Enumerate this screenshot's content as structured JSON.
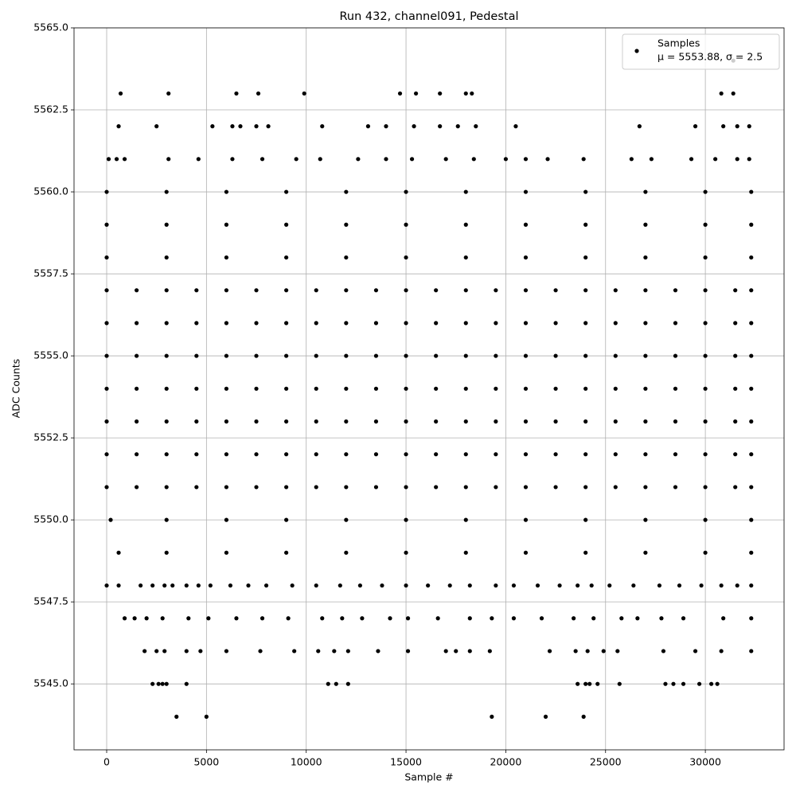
{
  "chart_data": {
    "type": "scatter",
    "title": "Run 432, channel091, Pedestal",
    "x_label": "Sample #",
    "y_label": "ADC Counts",
    "xlim": [
      -1636,
      33945
    ],
    "ylim": [
      5542.99,
      5565
    ],
    "xticks": [
      0,
      5000,
      10000,
      15000,
      20000,
      25000,
      30000
    ],
    "yticks": [
      {
        "value": 5545,
        "label": "5545.0"
      },
      {
        "value": 5547.5,
        "label": "5547.5"
      },
      {
        "value": 5550,
        "label": "5550.0"
      },
      {
        "value": 5552.5,
        "label": "5552.5"
      },
      {
        "value": 5555,
        "label": "5555.0"
      },
      {
        "value": 5557.5,
        "label": "5557.5"
      },
      {
        "value": 5560,
        "label": "5560.0"
      },
      {
        "value": 5562.5,
        "label": "5562.5"
      },
      {
        "value": 5565,
        "label": "5565.0"
      }
    ],
    "grid": true,
    "legend": "upper right",
    "annotation": "μ = 5553.88, σ = 2.5",
    "x": [
      31400,
      700,
      3100,
      6500,
      7600,
      9900,
      14700,
      15500,
      16700,
      18000,
      18300,
      30800,
      31400,
      600,
      2500,
      5300,
      6300,
      6700,
      7500,
      8100,
      10800,
      13100,
      14000,
      15400,
      16700,
      17600,
      18500,
      20500,
      26700,
      29500,
      30900,
      31600,
      32200,
      100,
      500,
      900,
      3100,
      4600,
      6300,
      7800,
      9500,
      10700,
      12600,
      14000,
      15300,
      17000,
      18400,
      20000,
      21000,
      22100,
      23900,
      26300,
      27300,
      29300,
      30500,
      31600,
      32200,
      0,
      3000,
      6000,
      9000,
      12000,
      15000,
      18000,
      21000,
      24000,
      27000,
      30000,
      32300,
      0,
      3000,
      6000,
      9000,
      12000,
      15000,
      18000,
      21000,
      24000,
      27000,
      30000,
      32300,
      0,
      3000,
      6000,
      9000,
      12000,
      15000,
      18000,
      21000,
      24000,
      27000,
      30000,
      32300,
      0,
      1500,
      3000,
      4500,
      6000,
      7500,
      9000,
      10500,
      12000,
      13500,
      15000,
      16500,
      18000,
      19500,
      21000,
      22500,
      24000,
      25500,
      27000,
      28500,
      30000,
      31500,
      32300,
      0,
      1500,
      3000,
      4500,
      6000,
      7500,
      9000,
      10500,
      12000,
      13500,
      15000,
      16500,
      18000,
      19500,
      21000,
      22500,
      24000,
      25500,
      27000,
      28500,
      30000,
      31500,
      32300,
      0,
      1500,
      3000,
      4500,
      6000,
      7500,
      9000,
      10500,
      12000,
      13500,
      15000,
      16500,
      18000,
      19500,
      21000,
      22500,
      24000,
      25500,
      27000,
      28500,
      30000,
      31500,
      32300,
      0,
      1500,
      3000,
      4500,
      6000,
      7500,
      9000,
      10500,
      12000,
      13500,
      15000,
      16500,
      18000,
      19500,
      21000,
      22500,
      24000,
      25500,
      27000,
      28500,
      30000,
      31500,
      32300,
      0,
      1500,
      3000,
      4500,
      6000,
      7500,
      9000,
      10500,
      12000,
      13500,
      15000,
      16500,
      18000,
      19500,
      21000,
      22500,
      24000,
      25500,
      27000,
      28500,
      30000,
      31500,
      32300,
      0,
      1500,
      3000,
      4500,
      6000,
      7500,
      9000,
      10500,
      12000,
      13500,
      15000,
      16500,
      18000,
      19500,
      21000,
      22500,
      24000,
      25500,
      27000,
      28500,
      30000,
      31500,
      32300,
      0,
      1500,
      3000,
      4500,
      6000,
      7500,
      9000,
      10500,
      12000,
      13500,
      15000,
      16500,
      18000,
      19500,
      21000,
      22500,
      24000,
      25500,
      27000,
      28500,
      30000,
      31500,
      32300,
      200,
      3000,
      6000,
      9000,
      12000,
      15000,
      18000,
      21000,
      24000,
      27000,
      30000,
      32300,
      600,
      3000,
      6000,
      9000,
      12000,
      15000,
      18000,
      21000,
      24000,
      27000,
      30000,
      32300,
      0,
      600,
      1700,
      2300,
      2900,
      3300,
      4000,
      4600,
      5200,
      6200,
      7100,
      8000,
      9300,
      10500,
      11700,
      12700,
      13800,
      15000,
      16100,
      17200,
      18200,
      19500,
      20400,
      21600,
      22700,
      23600,
      24300,
      25200,
      26400,
      27700,
      28700,
      29800,
      30800,
      31600,
      32300,
      900,
      1400,
      2000,
      2800,
      4100,
      5100,
      6500,
      7800,
      9100,
      10800,
      11800,
      12800,
      14200,
      15100,
      16600,
      18200,
      19300,
      20400,
      21800,
      23400,
      24400,
      25800,
      26600,
      27800,
      28900,
      30900,
      32300,
      1900,
      2500,
      2900,
      4000,
      4700,
      6000,
      7700,
      9400,
      10600,
      11400,
      12100,
      13600,
      15100,
      17000,
      17500,
      18200,
      19200,
      22200,
      23500,
      24100,
      24900,
      25600,
      27900,
      29500,
      30800,
      32300,
      2300,
      2600,
      2800,
      3000,
      4000,
      11100,
      11500,
      12100,
      23600,
      24000,
      24200,
      24600,
      25700,
      28000,
      28400,
      28900,
      29700,
      30300,
      30600,
      3500,
      5000,
      19300,
      22000,
      23900
    ],
    "series": [
      {
        "name": "Samples",
        "color": "#000000",
        "values": [
          5564,
          5563,
          5563,
          5563,
          5563,
          5563,
          5563,
          5563,
          5563,
          5563,
          5563,
          5563,
          5563,
          5562,
          5562,
          5562,
          5562,
          5562,
          5562,
          5562,
          5562,
          5562,
          5562,
          5562,
          5562,
          5562,
          5562,
          5562,
          5562,
          5562,
          5562,
          5562,
          5562,
          5561,
          5561,
          5561,
          5561,
          5561,
          5561,
          5561,
          5561,
          5561,
          5561,
          5561,
          5561,
          5561,
          5561,
          5561,
          5561,
          5561,
          5561,
          5561,
          5561,
          5561,
          5561,
          5561,
          5561,
          5560,
          5560,
          5560,
          5560,
          5560,
          5560,
          5560,
          5560,
          5560,
          5560,
          5560,
          5560,
          5559,
          5559,
          5559,
          5559,
          5559,
          5559,
          5559,
          5559,
          5559,
          5559,
          5559,
          5559,
          5558,
          5558,
          5558,
          5558,
          5558,
          5558,
          5558,
          5558,
          5558,
          5558,
          5558,
          5558,
          5557,
          5557,
          5557,
          5557,
          5557,
          5557,
          5557,
          5557,
          5557,
          5557,
          5557,
          5557,
          5557,
          5557,
          5557,
          5557,
          5557,
          5557,
          5557,
          5557,
          5557,
          5557,
          5557,
          5556,
          5556,
          5556,
          5556,
          5556,
          5556,
          5556,
          5556,
          5556,
          5556,
          5556,
          5556,
          5556,
          5556,
          5556,
          5556,
          5556,
          5556,
          5556,
          5556,
          5556,
          5556,
          5556,
          5555,
          5555,
          5555,
          5555,
          5555,
          5555,
          5555,
          5555,
          5555,
          5555,
          5555,
          5555,
          5555,
          5555,
          5555,
          5555,
          5555,
          5555,
          5555,
          5555,
          5555,
          5555,
          5555,
          5554,
          5554,
          5554,
          5554,
          5554,
          5554,
          5554,
          5554,
          5554,
          5554,
          5554,
          5554,
          5554,
          5554,
          5554,
          5554,
          5554,
          5554,
          5554,
          5554,
          5554,
          5554,
          5554,
          5553,
          5553,
          5553,
          5553,
          5553,
          5553,
          5553,
          5553,
          5553,
          5553,
          5553,
          5553,
          5553,
          5553,
          5553,
          5553,
          5553,
          5553,
          5553,
          5553,
          5553,
          5553,
          5553,
          5552,
          5552,
          5552,
          5552,
          5552,
          5552,
          5552,
          5552,
          5552,
          5552,
          5552,
          5552,
          5552,
          5552,
          5552,
          5552,
          5552,
          5552,
          5552,
          5552,
          5552,
          5552,
          5552,
          5551,
          5551,
          5551,
          5551,
          5551,
          5551,
          5551,
          5551,
          5551,
          5551,
          5551,
          5551,
          5551,
          5551,
          5551,
          5551,
          5551,
          5551,
          5551,
          5551,
          5551,
          5551,
          5551,
          5550,
          5550,
          5550,
          5550,
          5550,
          5550,
          5550,
          5550,
          5550,
          5550,
          5550,
          5550,
          5549,
          5549,
          5549,
          5549,
          5549,
          5549,
          5549,
          5549,
          5549,
          5549,
          5549,
          5549,
          5548,
          5548,
          5548,
          5548,
          5548,
          5548,
          5548,
          5548,
          5548,
          5548,
          5548,
          5548,
          5548,
          5548,
          5548,
          5548,
          5548,
          5548,
          5548,
          5548,
          5548,
          5548,
          5548,
          5548,
          5548,
          5548,
          5548,
          5548,
          5548,
          5548,
          5548,
          5548,
          5548,
          5548,
          5548,
          5547,
          5547,
          5547,
          5547,
          5547,
          5547,
          5547,
          5547,
          5547,
          5547,
          5547,
          5547,
          5547,
          5547,
          5547,
          5547,
          5547,
          5547,
          5547,
          5547,
          5547,
          5547,
          5547,
          5547,
          5547,
          5547,
          5547,
          5546,
          5546,
          5546,
          5546,
          5546,
          5546,
          5546,
          5546,
          5546,
          5546,
          5546,
          5546,
          5546,
          5546,
          5546,
          5546,
          5546,
          5546,
          5546,
          5546,
          5546,
          5546,
          5546,
          5546,
          5546,
          5546,
          5545,
          5545,
          5545,
          5545,
          5545,
          5545,
          5545,
          5545,
          5545,
          5545,
          5545,
          5545,
          5545,
          5545,
          5545,
          5545,
          5545,
          5545,
          5545,
          5544,
          5544,
          5544,
          5544,
          5544
        ]
      }
    ]
  }
}
